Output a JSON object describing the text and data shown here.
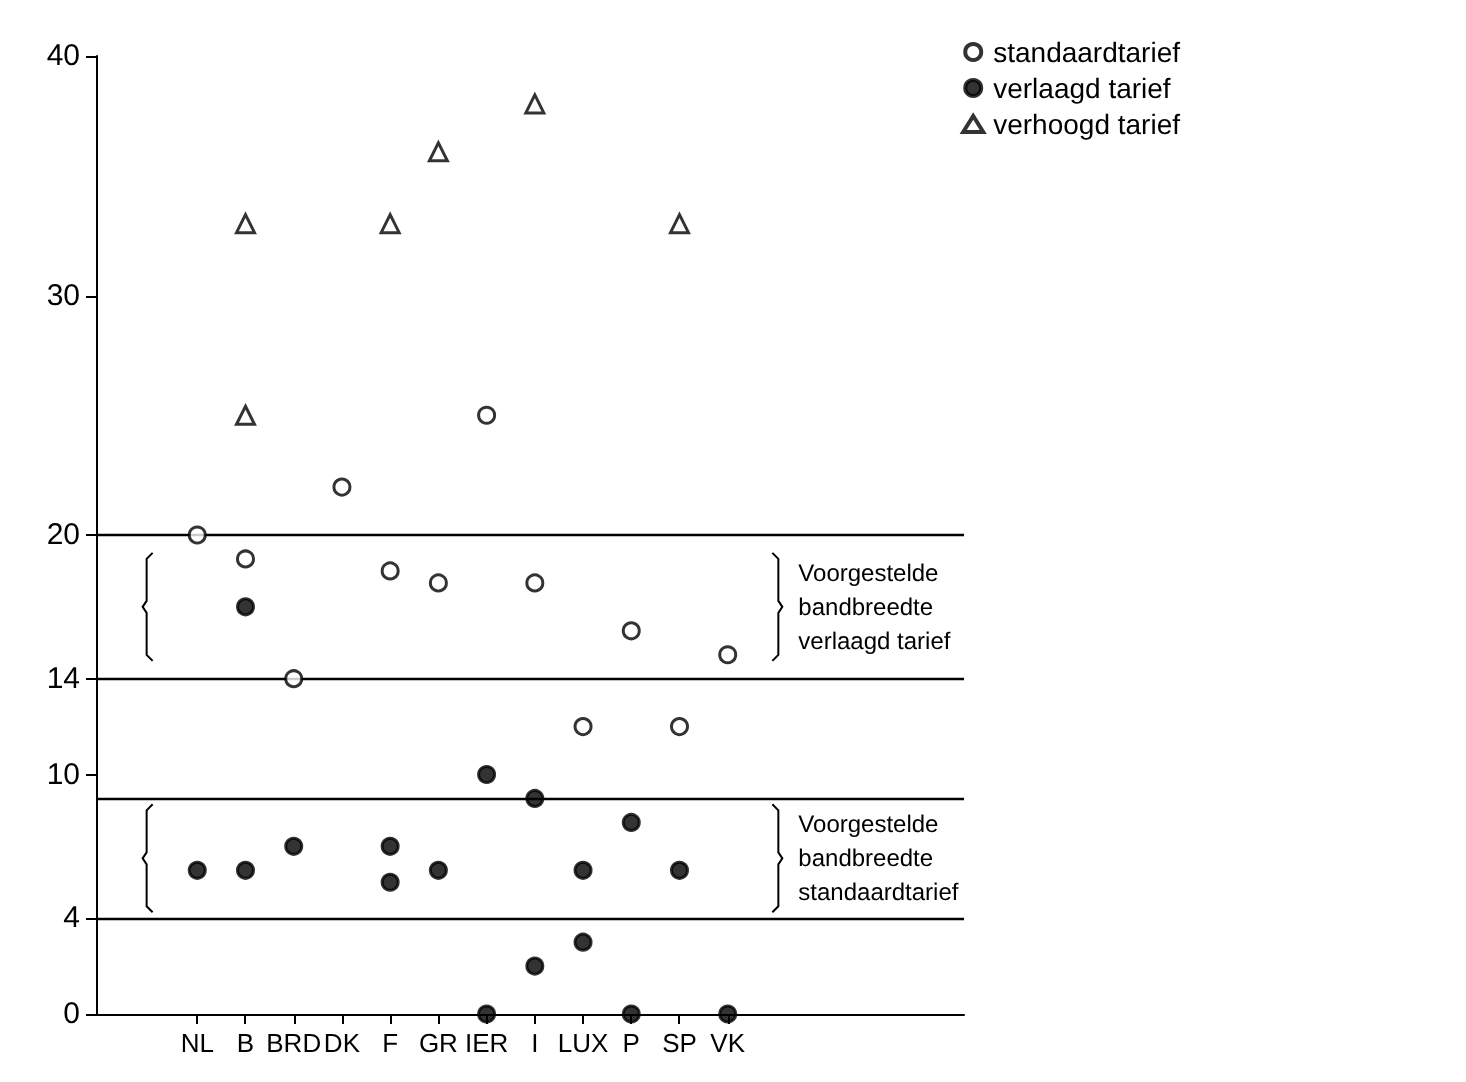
{
  "chart_data": {
    "type": "scatter",
    "categories": [
      "NL",
      "B",
      "BRD",
      "DK",
      "F",
      "GR",
      "IER",
      "I",
      "LUX",
      "P",
      "SP",
      "VK"
    ],
    "series": [
      {
        "name": "standaardtarief",
        "color": "#ffffff",
        "marker": "circle",
        "x": [
          "NL",
          "B",
          "BRD",
          "DK",
          "F",
          "GR",
          "IER",
          "I",
          "LUX",
          "P",
          "SP",
          "VK"
        ],
        "values": [
          20,
          19,
          14,
          22,
          18.5,
          18,
          25,
          18,
          12,
          16,
          12,
          15
        ]
      },
      {
        "name": "verlaagd tarief",
        "color": "#000000",
        "marker": "circle",
        "x": [
          "NL",
          "B",
          "B",
          "BRD",
          "F",
          "F",
          "GR",
          "IER",
          "IER",
          "I",
          "I",
          "LUX",
          "LUX",
          "P",
          "P",
          "SP",
          "VK"
        ],
        "values": [
          6,
          6,
          17,
          7,
          7,
          5.5,
          6,
          10,
          0,
          9,
          2,
          6,
          3,
          8,
          0,
          6,
          0
        ]
      },
      {
        "name": "verhoogd tarief",
        "color": "#ffffff",
        "marker": "triangle",
        "x": [
          "B",
          "B",
          "F",
          "GR",
          "I",
          "SP"
        ],
        "values": [
          33,
          25,
          33,
          36,
          38,
          33
        ]
      }
    ],
    "ylim": [
      0,
      40
    ],
    "yticks": [
      0,
      4,
      10,
      14,
      20,
      30,
      40
    ],
    "ref_lines": [
      {
        "axis": "y",
        "value": 20
      },
      {
        "axis": "y",
        "value": 14
      },
      {
        "axis": "y",
        "value": 9
      },
      {
        "axis": "y",
        "value": 4
      }
    ],
    "annotations": [
      "Voorgestelde\nbandbreedte\nverlaagd tarief",
      "Voorgestelde\nbandbreedte\nstandaardtarief"
    ],
    "legend": "top right",
    "grid": false
  }
}
